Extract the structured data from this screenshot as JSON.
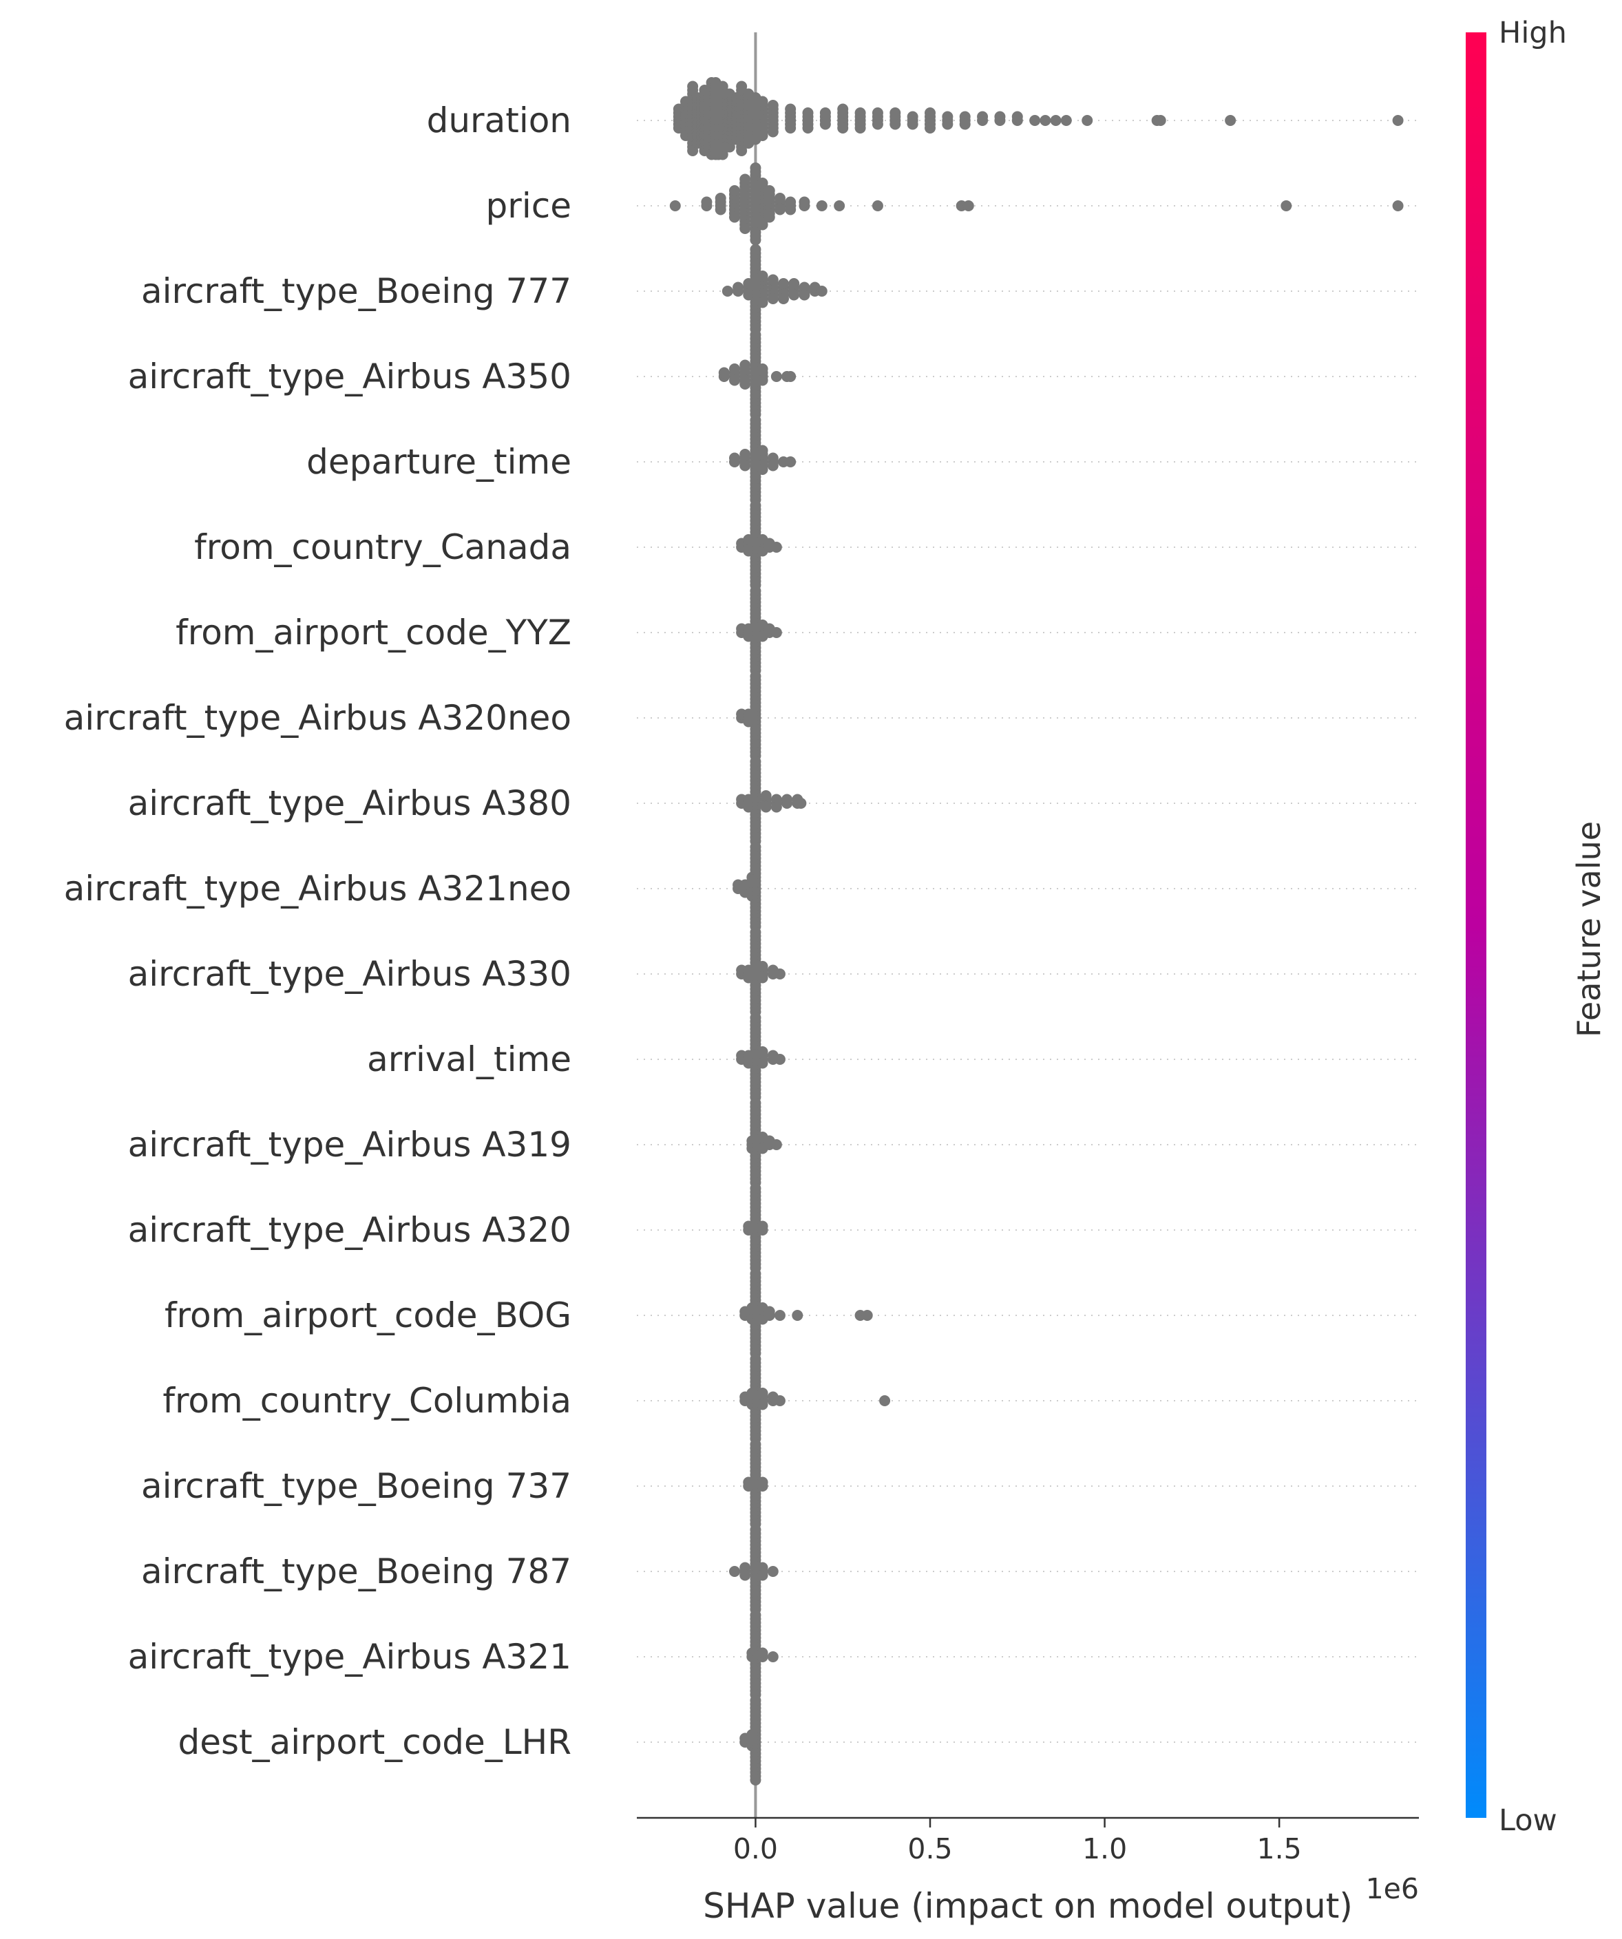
{
  "chart_data": {
    "type": "scatter",
    "subtype": "beeswarm",
    "features": [
      {
        "name": "duration",
        "points": [
          [
            -0.22,
            6
          ],
          [
            -0.2,
            10
          ],
          [
            -0.18,
            18
          ],
          [
            -0.16,
            26
          ],
          [
            -0.14,
            34
          ],
          [
            -0.12,
            40
          ],
          [
            -0.1,
            38
          ],
          [
            -0.08,
            30
          ],
          [
            -0.06,
            24
          ],
          [
            -0.04,
            18
          ],
          [
            -0.02,
            14
          ],
          [
            0.0,
            12
          ],
          [
            0.02,
            10
          ],
          [
            0.05,
            8
          ],
          [
            0.1,
            6
          ],
          [
            0.15,
            5
          ],
          [
            0.2,
            4
          ],
          [
            0.25,
            6
          ],
          [
            0.3,
            5
          ],
          [
            0.35,
            4
          ],
          [
            0.4,
            4
          ],
          [
            0.45,
            3
          ],
          [
            0.5,
            5
          ],
          [
            0.55,
            3
          ],
          [
            0.6,
            3
          ],
          [
            0.65,
            2
          ],
          [
            0.7,
            2
          ],
          [
            0.75,
            2
          ],
          [
            0.8,
            1
          ],
          [
            0.83,
            1
          ],
          [
            0.86,
            1
          ],
          [
            0.89,
            1
          ],
          [
            0.95,
            1
          ],
          [
            1.15,
            1
          ],
          [
            1.16,
            1
          ],
          [
            1.36,
            1
          ],
          [
            1.84,
            1
          ]
        ]
      },
      {
        "name": "price",
        "points": [
          [
            -0.23,
            1
          ],
          [
            -0.14,
            2
          ],
          [
            -0.1,
            4
          ],
          [
            -0.06,
            8
          ],
          [
            -0.03,
            14
          ],
          [
            0.0,
            20
          ],
          [
            0.02,
            12
          ],
          [
            0.04,
            8
          ],
          [
            0.07,
            4
          ],
          [
            0.1,
            3
          ],
          [
            0.14,
            2
          ],
          [
            0.19,
            1
          ],
          [
            0.24,
            1
          ],
          [
            0.35,
            1
          ],
          [
            0.59,
            1
          ],
          [
            0.61,
            1
          ],
          [
            1.52,
            1
          ],
          [
            1.84,
            1
          ]
        ]
      },
      {
        "name": "aircraft_type_Boeing 777",
        "points": [
          [
            -0.08,
            1
          ],
          [
            -0.05,
            2
          ],
          [
            -0.02,
            4
          ],
          [
            0.0,
            22
          ],
          [
            0.02,
            8
          ],
          [
            0.05,
            6
          ],
          [
            0.08,
            5
          ],
          [
            0.11,
            4
          ],
          [
            0.14,
            3
          ],
          [
            0.17,
            2
          ],
          [
            0.19,
            1
          ]
        ]
      },
      {
        "name": "aircraft_type_Airbus A350",
        "points": [
          [
            -0.09,
            2
          ],
          [
            -0.06,
            4
          ],
          [
            -0.03,
            6
          ],
          [
            0.0,
            22
          ],
          [
            0.02,
            4
          ],
          [
            0.06,
            1
          ],
          [
            0.09,
            1
          ],
          [
            0.1,
            1
          ]
        ]
      },
      {
        "name": "departure_time",
        "points": [
          [
            -0.06,
            2
          ],
          [
            -0.03,
            4
          ],
          [
            0.0,
            22
          ],
          [
            0.02,
            6
          ],
          [
            0.05,
            3
          ],
          [
            0.08,
            1
          ],
          [
            0.1,
            1
          ]
        ]
      },
      {
        "name": "from_country_Canada",
        "points": [
          [
            -0.04,
            2
          ],
          [
            -0.02,
            4
          ],
          [
            0.0,
            22
          ],
          [
            0.02,
            4
          ],
          [
            0.04,
            2
          ],
          [
            0.06,
            1
          ]
        ]
      },
      {
        "name": "from_airport_code_YYZ",
        "points": [
          [
            -0.04,
            2
          ],
          [
            -0.02,
            3
          ],
          [
            0.0,
            22
          ],
          [
            0.02,
            4
          ],
          [
            0.04,
            2
          ],
          [
            0.06,
            1
          ]
        ]
      },
      {
        "name": "aircraft_type_Airbus A320neo",
        "points": [
          [
            -0.04,
            2
          ],
          [
            -0.02,
            3
          ],
          [
            0.0,
            22
          ]
        ]
      },
      {
        "name": "aircraft_type_Airbus A380",
        "points": [
          [
            -0.04,
            2
          ],
          [
            -0.02,
            3
          ],
          [
            0.0,
            22
          ],
          [
            0.03,
            4
          ],
          [
            0.06,
            3
          ],
          [
            0.09,
            2
          ],
          [
            0.12,
            2
          ],
          [
            0.13,
            1
          ]
        ]
      },
      {
        "name": "aircraft_type_Airbus A321neo",
        "points": [
          [
            -0.05,
            2
          ],
          [
            -0.03,
            3
          ],
          [
            -0.01,
            6
          ],
          [
            0.0,
            22
          ]
        ]
      },
      {
        "name": "aircraft_type_Airbus A330",
        "points": [
          [
            -0.04,
            2
          ],
          [
            -0.02,
            3
          ],
          [
            0.0,
            22
          ],
          [
            0.02,
            4
          ],
          [
            0.05,
            2
          ],
          [
            0.07,
            1
          ]
        ]
      },
      {
        "name": "arrival_time",
        "points": [
          [
            -0.04,
            2
          ],
          [
            -0.02,
            3
          ],
          [
            0.0,
            22
          ],
          [
            0.02,
            4
          ],
          [
            0.05,
            2
          ],
          [
            0.07,
            1
          ]
        ]
      },
      {
        "name": "aircraft_type_Airbus A319",
        "points": [
          [
            -0.01,
            3
          ],
          [
            0.0,
            22
          ],
          [
            0.02,
            4
          ],
          [
            0.04,
            2
          ],
          [
            0.06,
            1
          ]
        ]
      },
      {
        "name": "aircraft_type_Airbus A320",
        "points": [
          [
            -0.02,
            2
          ],
          [
            0.0,
            22
          ],
          [
            0.02,
            2
          ]
        ]
      },
      {
        "name": "from_airport_code_BOG",
        "points": [
          [
            -0.03,
            2
          ],
          [
            -0.01,
            4
          ],
          [
            0.0,
            22
          ],
          [
            0.02,
            4
          ],
          [
            0.04,
            2
          ],
          [
            0.07,
            1
          ],
          [
            0.12,
            1
          ],
          [
            0.3,
            1
          ],
          [
            0.32,
            1
          ]
        ]
      },
      {
        "name": "from_country_Columbia",
        "points": [
          [
            -0.03,
            2
          ],
          [
            -0.01,
            4
          ],
          [
            0.0,
            22
          ],
          [
            0.02,
            4
          ],
          [
            0.05,
            2
          ],
          [
            0.07,
            1
          ],
          [
            0.37,
            1
          ]
        ]
      },
      {
        "name": "aircraft_type_Boeing 737",
        "points": [
          [
            -0.02,
            2
          ],
          [
            0.0,
            22
          ],
          [
            0.02,
            2
          ]
        ]
      },
      {
        "name": "aircraft_type_Boeing 787",
        "points": [
          [
            -0.06,
            1
          ],
          [
            -0.03,
            3
          ],
          [
            0.0,
            22
          ],
          [
            0.02,
            3
          ],
          [
            0.05,
            1
          ]
        ]
      },
      {
        "name": "aircraft_type_Airbus A321",
        "points": [
          [
            -0.01,
            2
          ],
          [
            0.0,
            22
          ],
          [
            0.02,
            2
          ],
          [
            0.05,
            1
          ]
        ]
      },
      {
        "name": "dest_airport_code_LHR",
        "points": [
          [
            -0.03,
            2
          ],
          [
            -0.01,
            4
          ],
          [
            0.0,
            22
          ]
        ]
      }
    ],
    "xlabel": "SHAP value (impact on model output)",
    "x_scale_label": "1e6",
    "xlim": [
      -0.34,
      1.9
    ],
    "xticks": [
      0.0,
      0.5,
      1.0,
      1.5
    ],
    "xtick_labels": [
      "0.0",
      "0.5",
      "1.0",
      "1.5"
    ],
    "colorbar": {
      "label": "Feature value",
      "high_label": "High",
      "low_label": "Low",
      "high_color": "#ff0052",
      "mid_color": "#bc00a0",
      "low_color": "#008bfb"
    },
    "point_color": "#777777",
    "grid": "dotted-row-guides"
  }
}
